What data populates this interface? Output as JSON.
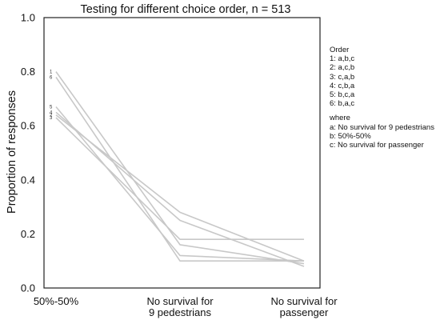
{
  "chart_data": {
    "type": "line",
    "title": "Testing for different choice order, n = 513",
    "ylabel": "Proportion of responses",
    "xlabel": "",
    "categories": [
      [
        "50%-50%"
      ],
      [
        "No survival for",
        "9 pedestrians"
      ],
      [
        "No survival for",
        "passenger"
      ]
    ],
    "ylim": [
      0.0,
      1.0
    ],
    "yticks": [
      "0.0",
      "0.2",
      "0.4",
      "0.6",
      "0.8",
      "1.0"
    ],
    "grid": false,
    "series": [
      {
        "name": "1",
        "values": [
          0.8,
          0.16,
          0.09
        ]
      },
      {
        "name": "2",
        "values": [
          0.64,
          0.28,
          0.1
        ]
      },
      {
        "name": "3",
        "values": [
          0.63,
          0.18,
          0.18
        ]
      },
      {
        "name": "4",
        "values": [
          0.65,
          0.25,
          0.08
        ]
      },
      {
        "name": "5",
        "values": [
          0.67,
          0.12,
          0.1
        ]
      },
      {
        "name": "6",
        "values": [
          0.78,
          0.1,
          0.1
        ]
      }
    ],
    "line_color": "#c8c8c8",
    "legend": {
      "placement": "right",
      "order_heading": "Order",
      "order_items": [
        "1: a,b,c",
        "2: a,c,b",
        "3: c,a,b",
        "4: c,b,a",
        "5: b,c,a",
        "6: b,a,c"
      ],
      "where_heading": "where",
      "where_items": [
        "a: No survival for 9 pedestrians",
        "b: 50%-50%",
        "c: No survival for passenger"
      ]
    }
  }
}
